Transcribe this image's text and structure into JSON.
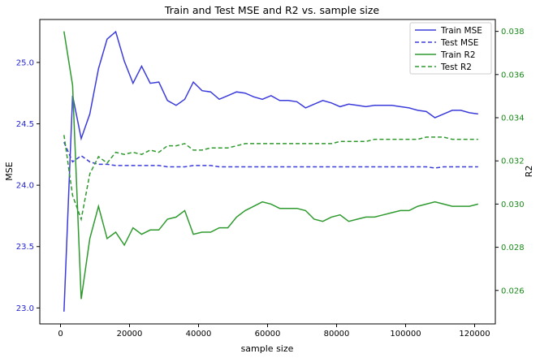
{
  "chart_data": {
    "type": "line",
    "title": "Train and Test MSE and R2 vs. sample size",
    "xlabel": "sample size",
    "ylabel_left": "MSE",
    "ylabel_right": "R2",
    "xlim": [
      -6000,
      126000
    ],
    "ylim_left": [
      22.87,
      25.35
    ],
    "ylim_right": [
      0.02445,
      0.03855
    ],
    "x_ticks": [
      0,
      20000,
      40000,
      60000,
      80000,
      100000,
      120000
    ],
    "y_left_ticks": [
      23.0,
      23.5,
      24.0,
      24.5,
      25.0
    ],
    "y_right_ticks": [
      0.026,
      0.028,
      0.03,
      0.032,
      0.034,
      0.036,
      0.038
    ],
    "grid": false,
    "legend_position": "top-right",
    "colors": {
      "mse": "#3b3bdb",
      "r2": "#2e9a2e",
      "mse_axis": "#1f1fd6",
      "r2_axis": "#1a8a1a"
    },
    "x": [
      1000,
      3500,
      6000,
      8500,
      11000,
      13500,
      16000,
      18500,
      21000,
      23500,
      26000,
      28500,
      31000,
      33500,
      36000,
      38500,
      41000,
      43500,
      46000,
      48500,
      51000,
      53500,
      56000,
      58500,
      61000,
      63500,
      66000,
      68500,
      71000,
      73500,
      76000,
      78500,
      81000,
      83500,
      86000,
      88500,
      91000,
      93500,
      96000,
      98500,
      101000,
      103500,
      106000,
      108500,
      111000,
      113500,
      116000,
      118500,
      121000
    ],
    "series": [
      {
        "name": "Train MSE",
        "axis": "left",
        "style": "solid",
        "values": [
          22.97,
          24.73,
          24.38,
          24.58,
          24.95,
          25.19,
          25.25,
          25.01,
          24.83,
          24.97,
          24.83,
          24.84,
          24.69,
          24.65,
          24.7,
          24.84,
          24.77,
          24.76,
          24.7,
          24.73,
          24.76,
          24.75,
          24.72,
          24.7,
          24.73,
          24.69,
          24.69,
          24.68,
          24.63,
          24.66,
          24.69,
          24.67,
          24.64,
          24.66,
          24.65,
          24.64,
          24.65,
          24.65,
          24.65,
          24.64,
          24.63,
          24.61,
          24.6,
          24.55,
          24.58,
          24.61,
          24.61,
          24.59,
          24.58
        ]
      },
      {
        "name": "Test MSE",
        "axis": "left",
        "style": "dashed",
        "values": [
          24.35,
          24.19,
          24.24,
          24.19,
          24.17,
          24.17,
          24.16,
          24.16,
          24.16,
          24.16,
          24.16,
          24.16,
          24.15,
          24.15,
          24.15,
          24.16,
          24.16,
          24.16,
          24.15,
          24.15,
          24.15,
          24.15,
          24.15,
          24.15,
          24.15,
          24.15,
          24.15,
          24.15,
          24.15,
          24.15,
          24.15,
          24.15,
          24.15,
          24.15,
          24.15,
          24.15,
          24.15,
          24.15,
          24.15,
          24.15,
          24.15,
          24.15,
          24.15,
          24.14,
          24.15,
          24.15,
          24.15,
          24.15,
          24.15
        ]
      },
      {
        "name": "Train R2",
        "axis": "right",
        "style": "solid",
        "values": [
          0.038,
          0.0355,
          0.0256,
          0.0284,
          0.0299,
          0.0284,
          0.0287,
          0.0281,
          0.0289,
          0.0286,
          0.0288,
          0.0288,
          0.0293,
          0.0294,
          0.0297,
          0.0286,
          0.0287,
          0.0287,
          0.0289,
          0.0289,
          0.0294,
          0.0297,
          0.0299,
          0.0301,
          0.03,
          0.0298,
          0.0298,
          0.0298,
          0.0297,
          0.0293,
          0.0292,
          0.0294,
          0.0295,
          0.0292,
          0.0293,
          0.0294,
          0.0294,
          0.0295,
          0.0296,
          0.0297,
          0.0297,
          0.0299,
          0.03,
          0.0301,
          0.03,
          0.0299,
          0.0299,
          0.0299,
          0.03
        ]
      },
      {
        "name": "Test R2",
        "axis": "right",
        "style": "dashed",
        "values": [
          0.0332,
          0.0304,
          0.0293,
          0.0314,
          0.0322,
          0.0319,
          0.0324,
          0.0323,
          0.0324,
          0.0323,
          0.0325,
          0.0324,
          0.0327,
          0.0327,
          0.0328,
          0.0325,
          0.0325,
          0.0326,
          0.0326,
          0.0326,
          0.0327,
          0.0328,
          0.0328,
          0.0328,
          0.0328,
          0.0328,
          0.0328,
          0.0328,
          0.0328,
          0.0328,
          0.0328,
          0.0328,
          0.0329,
          0.0329,
          0.0329,
          0.0329,
          0.033,
          0.033,
          0.033,
          0.033,
          0.033,
          0.033,
          0.0331,
          0.0331,
          0.0331,
          0.033,
          0.033,
          0.033,
          0.033
        ]
      }
    ],
    "legend": [
      "Train MSE",
      "Test MSE",
      "Train R2",
      "Test R2"
    ]
  }
}
